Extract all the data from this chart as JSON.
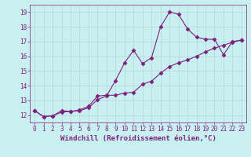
{
  "xlabel": "Windchill (Refroidissement éolien,°C)",
  "bg_color": "#c8f0f0",
  "line_color": "#7f1f7f",
  "xlim": [
    -0.5,
    23.5
  ],
  "ylim": [
    11.5,
    19.5
  ],
  "yticks": [
    12,
    13,
    14,
    15,
    16,
    17,
    18,
    19
  ],
  "xticks": [
    0,
    1,
    2,
    3,
    4,
    5,
    6,
    7,
    8,
    9,
    10,
    11,
    12,
    13,
    14,
    15,
    16,
    17,
    18,
    19,
    20,
    21,
    22,
    23
  ],
  "line1_x": [
    0,
    1,
    2,
    3,
    4,
    5,
    6,
    7,
    8,
    9,
    10,
    11,
    12,
    13,
    14,
    15,
    16,
    17,
    18,
    19,
    20,
    21,
    22,
    23
  ],
  "line1_y": [
    12.3,
    11.9,
    11.95,
    12.3,
    12.25,
    12.3,
    12.5,
    13.05,
    13.3,
    14.35,
    15.55,
    16.4,
    15.5,
    15.9,
    18.0,
    19.0,
    18.85,
    17.85,
    17.3,
    17.15,
    17.15,
    16.1,
    17.0,
    17.1
  ],
  "line2_x": [
    0,
    1,
    2,
    3,
    4,
    5,
    6,
    7,
    8,
    9,
    10,
    11,
    12,
    13,
    14,
    15,
    16,
    17,
    18,
    19,
    20,
    21,
    22,
    23
  ],
  "line2_y": [
    12.3,
    11.9,
    11.95,
    12.2,
    12.25,
    12.35,
    12.6,
    13.3,
    13.35,
    13.35,
    13.5,
    13.55,
    14.1,
    14.3,
    14.85,
    15.3,
    15.55,
    15.75,
    16.0,
    16.3,
    16.55,
    16.75,
    16.95,
    17.1
  ],
  "grid_color": "#b0d8d8",
  "font_color": "#7f1f7f",
  "tick_fontsize": 5.5,
  "label_fontsize": 6.5
}
